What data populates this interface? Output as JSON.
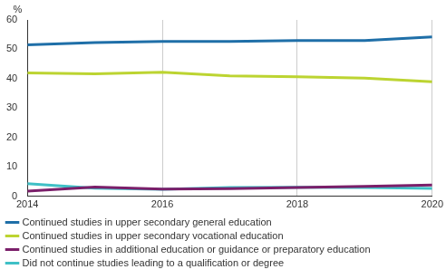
{
  "chart_data": {
    "type": "line",
    "ylabel": "%",
    "x": [
      2014,
      2015,
      2016,
      2017,
      2018,
      2019,
      2020
    ],
    "series": [
      {
        "name": "Continued studies in upper secondary general education",
        "color": "#1f6fa8",
        "values": [
          51.5,
          52.3,
          52.7,
          52.7,
          53.0,
          53.0,
          54.2
        ]
      },
      {
        "name": "Continued studies in upper secondary vocational education",
        "color": "#bcd431",
        "values": [
          42.0,
          41.7,
          42.2,
          41.0,
          40.7,
          40.2,
          39.0
        ]
      },
      {
        "name": "Continued studies in additional education or guidance or preparatory education",
        "color": "#7b1f6a",
        "values": [
          1.8,
          3.2,
          2.5,
          2.6,
          3.0,
          3.4,
          3.9
        ]
      },
      {
        "name": "Did not continue studies leading to a qualification or degree",
        "color": "#3fc0c6",
        "values": [
          4.3,
          2.8,
          2.4,
          3.0,
          3.1,
          3.0,
          2.7
        ]
      }
    ],
    "xlim": [
      2014,
      2020
    ],
    "xticks": [
      2014,
      2016,
      2018,
      2020
    ],
    "ylim": [
      0,
      60
    ],
    "yticks": [
      0,
      10,
      20,
      30,
      40,
      50,
      60
    ],
    "grid": true,
    "legend": "bottom"
  }
}
